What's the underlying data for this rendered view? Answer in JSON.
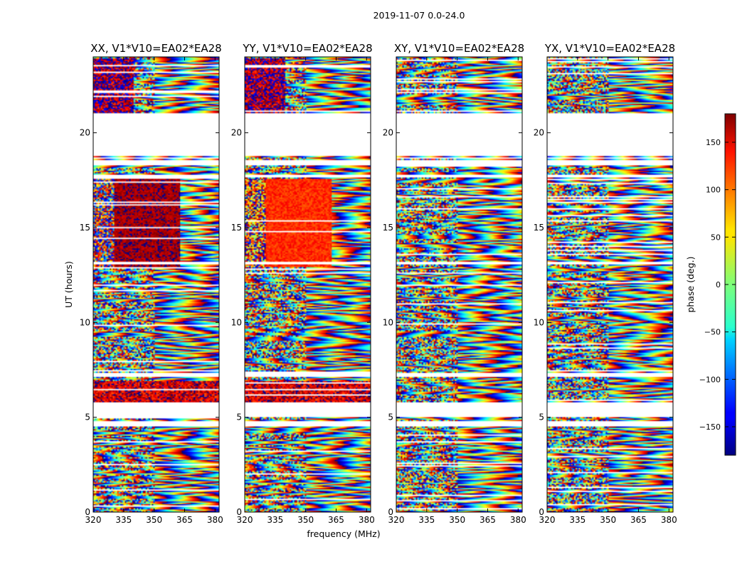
{
  "chart_data": {
    "type": "heatmap",
    "suptitle": "2019-11-07 0.0-24.0",
    "xlabel": "frequency (MHz)",
    "ylabel": "UT (hours)",
    "xlim": [
      320,
      382
    ],
    "ylim": [
      0,
      24
    ],
    "xticks": [
      "320",
      "335",
      "350",
      "365",
      "380"
    ],
    "yticks": [
      "0",
      "5",
      "10",
      "15",
      "20"
    ],
    "panels": [
      {
        "id": "xx",
        "title": "XX, V1*V10=EA02*EA28"
      },
      {
        "id": "yy",
        "title": "YY, V1*V10=EA02*EA28"
      },
      {
        "id": "xy",
        "title": "XY, V1*V10=EA02*EA28"
      },
      {
        "id": "yx",
        "title": "YX, V1*V10=EA02*EA28"
      }
    ],
    "colorbar": {
      "label": "phase (deg.)",
      "range": [
        -180,
        180
      ],
      "colormap": "jet",
      "ticks": [
        "150",
        "100",
        "50",
        "0",
        "−50",
        "−100",
        "−150"
      ],
      "tick_values": [
        150,
        100,
        50,
        0,
        -50,
        -100,
        -150
      ]
    },
    "gaps_hours": [
      [
        18.8,
        21.0
      ],
      [
        4.5,
        4.8
      ],
      [
        5.0,
        5.8
      ],
      [
        18.25,
        18.55
      ],
      [
        7.1,
        7.35
      ],
      [
        13.05,
        13.2
      ],
      [
        17.65,
        17.8
      ]
    ]
  }
}
